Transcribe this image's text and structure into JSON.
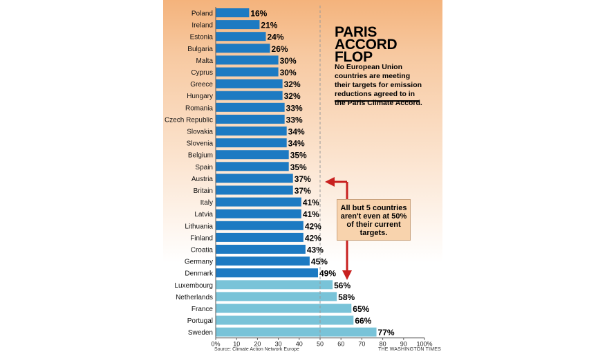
{
  "chart_data": {
    "type": "bar",
    "orientation": "horizontal",
    "title": "PARIS ACCORD FLOP",
    "subtitle": "No European Union countries are meeting their targets for emission reductions agreed to in the Paris Climate Accord.",
    "annotation": "All but 5 countries aren't even at 50% of their current targets.",
    "source": "Source: Climate Action Network Europe",
    "credit": "THE WASHINGTON TIMES",
    "categories": [
      "Poland",
      "Ireland",
      "Estonia",
      "Bulgaria",
      "Malta",
      "Cyprus",
      "Greece",
      "Hungary",
      "Romania",
      "Czech Republic",
      "Slovakia",
      "Slovenia",
      "Belgium",
      "Spain",
      "Austria",
      "Britain",
      "Italy",
      "Latvia",
      "Lithuania",
      "Finland",
      "Croatia",
      "Germany",
      "Denmark",
      "Luxembourg",
      "Netherlands",
      "France",
      "Portugal",
      "Sweden"
    ],
    "values": [
      16,
      21,
      24,
      26,
      30,
      30,
      32,
      32,
      33,
      33,
      34,
      34,
      35,
      35,
      37,
      37,
      41,
      41,
      42,
      42,
      43,
      45,
      49,
      56,
      58,
      65,
      66,
      77
    ],
    "value_labels": [
      "16%",
      "21%",
      "24%",
      "26%",
      "30%",
      "30%",
      "32%",
      "32%",
      "33%",
      "33%",
      "34%",
      "34%",
      "35%",
      "35%",
      "37%",
      "37%",
      "41%",
      "41%",
      "42%",
      "42%",
      "43%",
      "45%",
      "49%",
      "56%",
      "58%",
      "65%",
      "66%",
      "77%"
    ],
    "x_ticks": [
      "0%",
      "10",
      "20",
      "30",
      "40",
      "50",
      "60",
      "70",
      "80",
      "90",
      "100%"
    ],
    "xlim": [
      0,
      100
    ],
    "reference_line": 50,
    "grid": false,
    "colors": {
      "below_50": "#1d7ac2",
      "above_50": "#79c3d8",
      "arrow": "#c8201f",
      "reference": "#999999"
    }
  }
}
